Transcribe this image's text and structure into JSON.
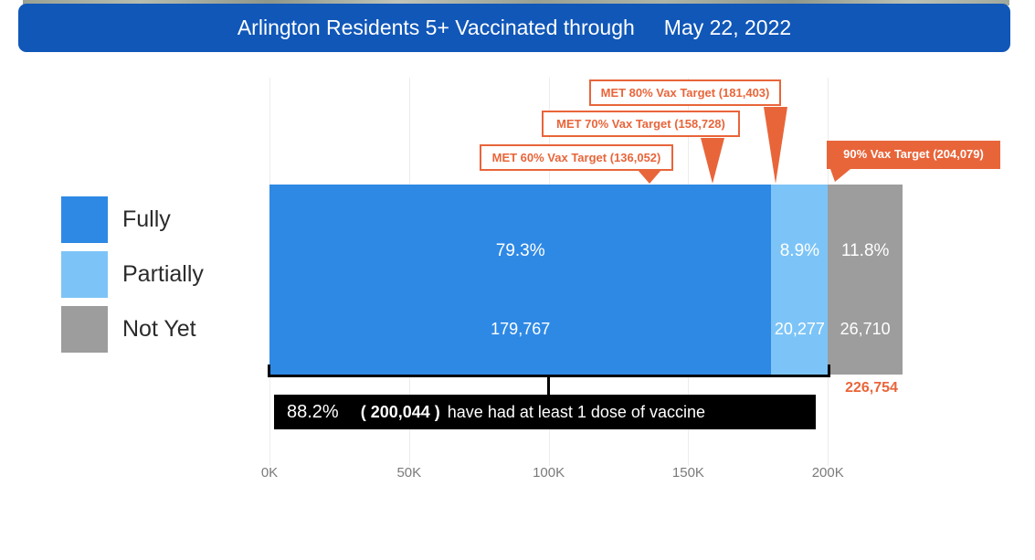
{
  "title": {
    "main": "Arlington Residents 5+ Vaccinated through",
    "date": "May 22, 2022"
  },
  "legend": {
    "items": [
      {
        "label": "Fully",
        "color": "#2E89E5"
      },
      {
        "label": "Partially",
        "color": "#7CC4F7"
      },
      {
        "label": "Not Yet",
        "color": "#9D9D9D"
      }
    ]
  },
  "chart_data": {
    "type": "bar",
    "orientation": "horizontal-stacked",
    "title": "Arlington Residents 5+ Vaccinated through May 22, 2022",
    "categories": [
      "Fully",
      "Partially",
      "Not Yet"
    ],
    "series": [
      {
        "name": "Fully",
        "value": 179767,
        "percent_label": "79.3%",
        "count_label": "179,767",
        "color": "#2E89E5"
      },
      {
        "name": "Partially",
        "value": 20277,
        "percent_label": "8.9%",
        "count_label": "20,277",
        "color": "#7CC4F7"
      },
      {
        "name": "Not Yet",
        "value": 26710,
        "percent_label": "11.8%",
        "count_label": "26,710",
        "color": "#9D9D9D"
      }
    ],
    "total": 226754,
    "total_label": "226,754",
    "xlim": [
      0,
      226754
    ],
    "x_ticks": [
      "0K",
      "50K",
      "100K",
      "150K",
      "200K"
    ],
    "x_tick_values": [
      0,
      50000,
      100000,
      150000,
      200000
    ],
    "grid": true,
    "legend_position": "left",
    "targets": [
      {
        "label": "MET 60% Vax Target (136,052)",
        "value": 136052,
        "met": true,
        "style": "outline"
      },
      {
        "label": "MET 70% Vax Target (158,728)",
        "value": 158728,
        "met": true,
        "style": "outline"
      },
      {
        "label": "MET 80% Vax Target (181,403)",
        "value": 181403,
        "met": true,
        "style": "outline"
      },
      {
        "label": "90% Vax Target (204,079)",
        "value": 204079,
        "met": false,
        "style": "solid"
      }
    ],
    "at_least_one_dose": {
      "percent": "88.2%",
      "count": "( 200,044 )",
      "text": "have had at least 1 dose of vaccine",
      "value": 200044
    }
  },
  "colors": {
    "title_bar": "#1057B8",
    "fully": "#2E89E5",
    "partially": "#7CC4F7",
    "not_yet": "#9D9D9D",
    "target_orange": "#E8653A",
    "axis_text": "#7A7A7A",
    "summary_box_bg": "#000000"
  }
}
